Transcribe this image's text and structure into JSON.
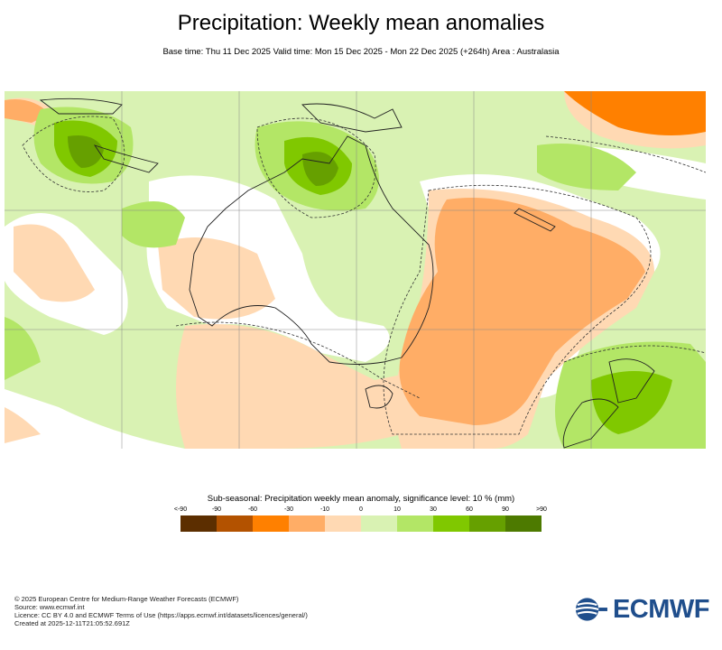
{
  "header": {
    "title": "Precipitation: Weekly mean anomalies",
    "subtitle": "Base time: Thu 11 Dec 2025 Valid time: Mon 15 Dec 2025 - Mon 22 Dec 2025 (+264h) Area : Australasia"
  },
  "legend": {
    "title": "Sub-seasonal: Precipitation weekly mean anomaly, significance level: 10 % (mm)",
    "ticks": [
      "<-90",
      "-90",
      "-60",
      "-30",
      "-10",
      "0",
      "10",
      "30",
      "60",
      "90",
      ">90"
    ],
    "colors": [
      "#5c2e00",
      "#b35200",
      "#ff8000",
      "#ffad66",
      "#ffd9b3",
      "#d9f2b3",
      "#b3e666",
      "#80c800",
      "#66a000",
      "#4d7a00"
    ]
  },
  "map": {
    "region": "Australasia",
    "colors": {
      "dry_strong": "#ff8000",
      "dry_moderate": "#ffad66",
      "dry_weak": "#ffd9b3",
      "neutral": "#ffffff",
      "wet_weak": "#d9f2b3",
      "wet_moderate": "#b3e666",
      "wet_strong": "#80c800",
      "wet_very_strong": "#66a000",
      "wet_extreme": "#4d7a00"
    }
  },
  "footer": {
    "line1": "© 2025 European Centre for Medium-Range Weather Forecasts (ECMWF)",
    "line2": "Source: www.ecmwf.int",
    "line3": "Licence: CC BY 4.0 and ECMWF Terms of Use (https://apps.ecmwf.int/datasets/licences/general/)",
    "line4": "Created at 2025-12-11T21:05:52.691Z"
  },
  "logo": {
    "text": "ECMWF",
    "icon": "ecmwf-logo-icon",
    "color": "#1f4e8c"
  }
}
